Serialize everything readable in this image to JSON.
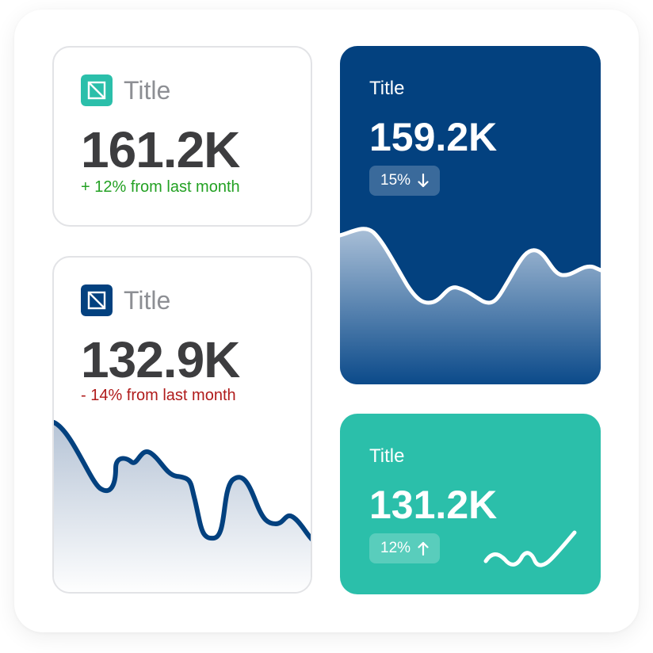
{
  "colors": {
    "teal": "#2bbfaa",
    "navy": "#03417f",
    "positive": "#23a123",
    "negative": "#b01b1b",
    "label_gray": "#8d8f94",
    "value_dark": "#3d3d3f"
  },
  "cards": [
    {
      "title": "Title",
      "value": "161.2K",
      "change": "+ 12% from last month",
      "trend": "up",
      "icon": "square-logo-icon"
    },
    {
      "title": "Title",
      "value": "132.9K",
      "change": "- 14% from last month",
      "trend": "down",
      "icon": "square-logo-icon"
    },
    {
      "title": "Title",
      "value": "159.2K",
      "badge": "15%",
      "trend": "down",
      "icon": "arrow-down-icon"
    },
    {
      "title": "Title",
      "value": "131.2K",
      "badge": "12%",
      "trend": "up",
      "icon": "arrow-up-icon"
    }
  ]
}
